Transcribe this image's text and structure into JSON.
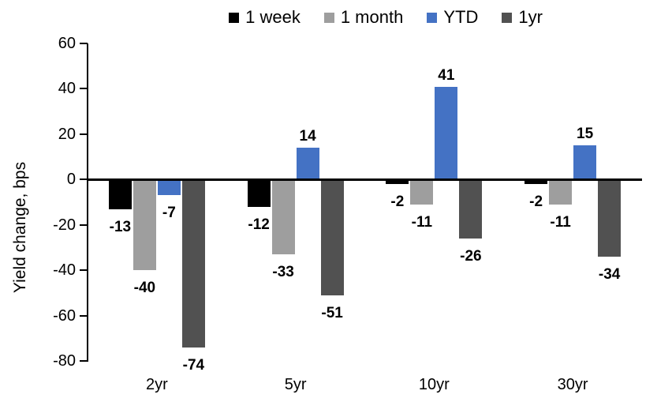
{
  "chart_data": {
    "type": "bar",
    "title": "",
    "ylabel": "Yield change, bps",
    "xlabel": "",
    "categories": [
      "2yr",
      "5yr",
      "10yr",
      "30yr"
    ],
    "series": [
      {
        "name": "1 week",
        "color": "#000000",
        "values": [
          -13,
          -12,
          -2,
          -2
        ]
      },
      {
        "name": "1 month",
        "color": "#9e9e9e",
        "values": [
          -40,
          -33,
          -11,
          -11
        ]
      },
      {
        "name": "YTD",
        "color": "#4472c4",
        "values": [
          -7,
          14,
          41,
          15
        ]
      },
      {
        "name": "1yr",
        "color": "#515151",
        "values": [
          -74,
          -51,
          -26,
          -34
        ]
      }
    ],
    "ylim": [
      -80,
      60
    ],
    "ytick_step": 20,
    "yticks": [
      60,
      40,
      20,
      0,
      -20,
      -40,
      -60,
      -80
    ],
    "grid": false,
    "legend_position": "top",
    "data_labels": true,
    "background": "#ffffff",
    "axis_color": "#000000"
  }
}
